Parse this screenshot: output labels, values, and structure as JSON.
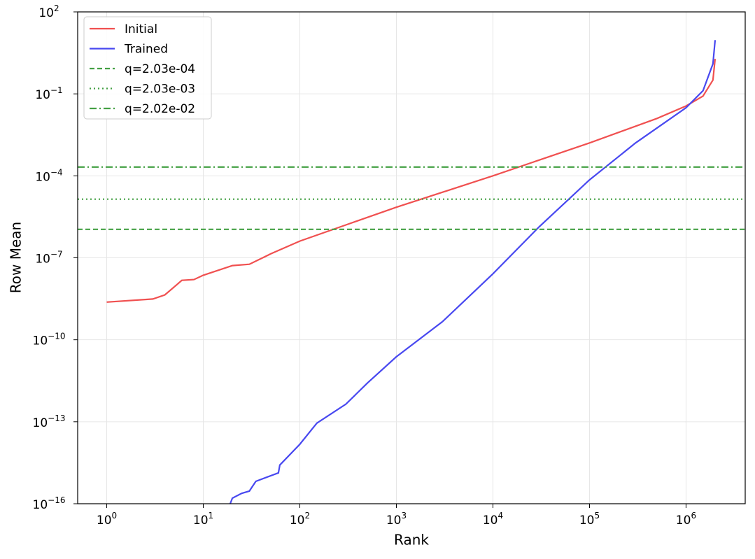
{
  "chart_data": {
    "type": "line",
    "xlabel": "Rank",
    "ylabel": "Row Mean",
    "xscale": "log",
    "yscale": "log",
    "grid": true,
    "legend": "upper left",
    "xlim": [
      0.5,
      4100000
    ],
    "ylim": [
      1e-16,
      100
    ],
    "xticks": [
      {
        "value": 1,
        "label": "10^0"
      },
      {
        "value": 10,
        "label": "10^1"
      },
      {
        "value": 100,
        "label": "10^2"
      },
      {
        "value": 1000,
        "label": "10^3"
      },
      {
        "value": 10000,
        "label": "10^4"
      },
      {
        "value": 100000,
        "label": "10^5"
      },
      {
        "value": 1000000,
        "label": "10^6"
      }
    ],
    "yticks": [
      {
        "value": 1e-16,
        "label": "10^−16"
      },
      {
        "value": 1e-13,
        "label": "10^−13"
      },
      {
        "value": 1e-10,
        "label": "10^−10"
      },
      {
        "value": 1e-07,
        "label": "10^−7"
      },
      {
        "value": 0.0001,
        "label": "10^−4"
      },
      {
        "value": 0.1,
        "label": "10^−1"
      },
      {
        "value": 100,
        "label": "10^2"
      }
    ],
    "series": [
      {
        "name": "Initial",
        "color": "#f05050",
        "style": "solid",
        "x": [
          1,
          3,
          4,
          6,
          8,
          10,
          20,
          30,
          50,
          100,
          300,
          1000,
          10000,
          100000,
          500000,
          1000000,
          1500000,
          1900000,
          2000000
        ],
        "values": [
          2.4e-09,
          3.1e-09,
          4.4e-09,
          1.5e-08,
          1.6e-08,
          2.3e-08,
          5.2e-08,
          5.8e-08,
          1.4e-07,
          4.1e-07,
          1.6e-06,
          7.1e-06,
          0.0001,
          0.0016,
          0.0126,
          0.036,
          0.083,
          0.32,
          1.9
        ]
      },
      {
        "name": "Trained",
        "color": "#4848f0",
        "style": "solid",
        "x": [
          19,
          20,
          25,
          30,
          35,
          60,
          62,
          100,
          150,
          300,
          500,
          1000,
          3000,
          10000,
          30000,
          100000,
          300000,
          1000000,
          1500000,
          1900000,
          2000000
        ],
        "values": [
          1e-16,
          1.6e-16,
          2.4e-16,
          2.9e-16,
          6.6e-16,
          1.35e-15,
          2.6e-15,
          1.5e-14,
          8.9e-14,
          4.4e-13,
          2.6e-12,
          2.4e-11,
          4.6e-10,
          2.6e-08,
          1.35e-06,
          7.1e-05,
          0.0016,
          0.031,
          0.13,
          1.26,
          9.3
        ]
      },
      {
        "name": "q=2.03e-04",
        "color": "#44a044",
        "style": "dashed",
        "y": 1.1e-06
      },
      {
        "name": "q=2.03e-03",
        "color": "#44a044",
        "style": "dotted",
        "y": 1.4e-05
      },
      {
        "name": "q=2.02e-02",
        "color": "#44a044",
        "style": "dashdot",
        "y": 0.00021
      }
    ]
  }
}
